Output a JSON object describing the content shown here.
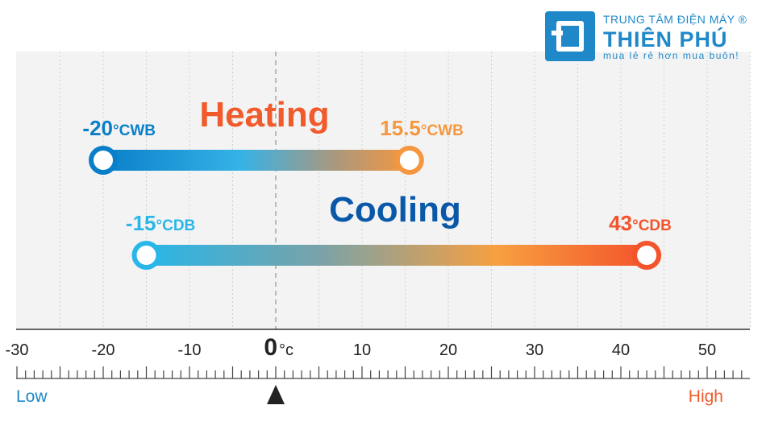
{
  "brand": {
    "line1": "TRUNG TÂM ĐIỆN MÁY ®",
    "line2": "THIÊN PHÚ",
    "line3": "mua lẻ rẻ hơn mua buôn!",
    "color": "#1e88c8"
  },
  "chart_data": {
    "type": "range",
    "xlim": [
      -30,
      55
    ],
    "ticks": [
      "-30",
      "-20",
      "-10",
      "0",
      "10",
      "20",
      "30",
      "40",
      "50"
    ],
    "tick_values": [
      -30,
      -20,
      -10,
      0,
      10,
      20,
      30,
      40,
      50
    ],
    "zero_unit": "°c",
    "low_label": "Low",
    "high_label": "High",
    "ranges": [
      {
        "name": "Heating",
        "start": -20,
        "end": 15.5,
        "start_label": "-20",
        "start_unit": "°CWB",
        "end_label": "15.5",
        "end_unit": "°CWB",
        "start_color": "#0a7fc9",
        "end_color": "#f5973f",
        "title_color": "#f15a2b"
      },
      {
        "name": "Cooling",
        "start": -15,
        "end": 43,
        "start_label": "-15",
        "start_unit": "°CDB",
        "end_label": "43",
        "end_unit": "°CDB",
        "start_color": "#29b6e8",
        "end_color": "#f3542b",
        "title_color": "#0a58a8"
      }
    ]
  }
}
